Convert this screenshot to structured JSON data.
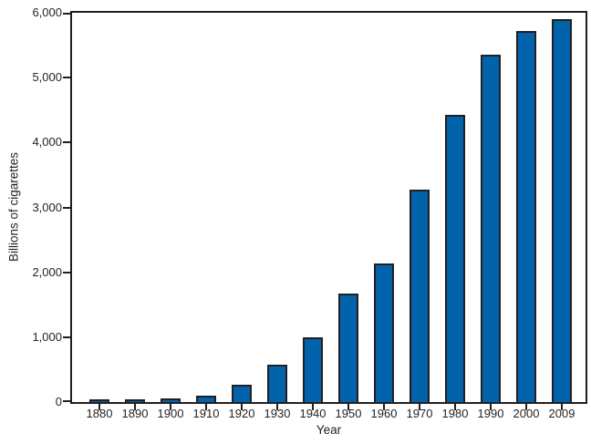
{
  "chart_data": {
    "type": "bar",
    "title": "",
    "xlabel": "Year",
    "ylabel": "Billions of cigarettes",
    "categories": [
      "1880",
      "1890",
      "1900",
      "1910",
      "1920",
      "1930",
      "1940",
      "1950",
      "1960",
      "1970",
      "1980",
      "1990",
      "2000",
      "2009"
    ],
    "values": [
      10,
      20,
      50,
      100,
      260,
      570,
      1000,
      1670,
      2130,
      3270,
      4430,
      5350,
      5720,
      5900
    ],
    "ylim": [
      0,
      6000
    ],
    "ytick_step": 1000,
    "ytick_labels": [
      "0",
      "1,000",
      "2,000",
      "3,000",
      "4,000",
      "5,000",
      "6,000"
    ],
    "grid": false,
    "legend": null,
    "colors": {
      "bar_fill": "#0063AC",
      "bar_outline": "#231F20",
      "axis": "#231F20",
      "text": "#262324",
      "background": "#FFFFFF"
    }
  }
}
